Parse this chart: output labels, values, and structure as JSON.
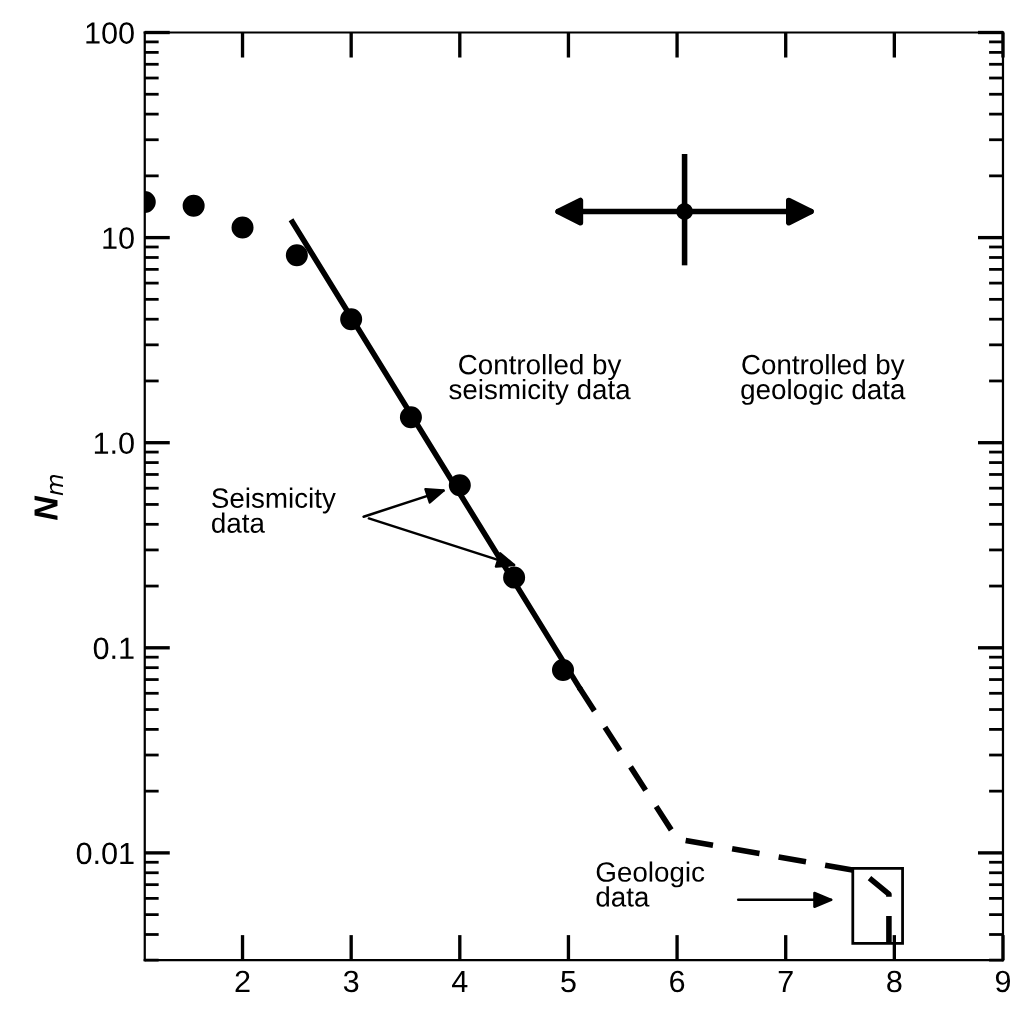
{
  "chart_data": {
    "type": "scatter",
    "ylabel": "N$_{m}$",
    "log": "y",
    "xlim": [
      1.1,
      9
    ],
    "xticks": [
      2,
      3,
      4,
      5,
      6,
      7,
      8,
      9
    ],
    "ylim": [
      0.003,
      100
    ],
    "yticks": [
      {
        "value": 0.01,
        "label": "0.01"
      },
      {
        "value": 0.1,
        "label": "0.1"
      },
      {
        "value": 1,
        "label": "1.0"
      },
      {
        "value": 10,
        "label": "10"
      },
      {
        "value": 100,
        "label": "100"
      }
    ],
    "grid": false,
    "series": [
      {
        "color": "#000000",
        "marker": "circle",
        "x": [
          1.1,
          1.55,
          2.0,
          2.5,
          3.0,
          3.55,
          4.0,
          4.5,
          4.95
        ],
        "values": [
          14.9,
          14.3,
          11.2,
          8.2,
          4.0,
          1.33,
          0.62,
          0.22,
          0.078
        ]
      },
      {
        "type": "line",
        "color": "#000000",
        "line_style": "solid",
        "x": [
          2.46,
          5.1
        ],
        "values": [
          11.9,
          0.064
        ]
      },
      {
        "type": "line",
        "color": "#000000",
        "line_style": "dashed",
        "x": [
          5.1,
          6.0,
          7.7,
          7.95,
          7.95
        ],
        "values": [
          0.064,
          0.0117,
          0.0081,
          0.0063,
          0.003
        ]
      }
    ],
    "annotations": [
      "Controlled by\nseismicity data",
      "Controlled by\ngeologic data",
      {
        "text": "Seismicity\ndata",
        "x": 4.0,
        "y": 0.62
      },
      "Geologic\ndata"
    ]
  }
}
